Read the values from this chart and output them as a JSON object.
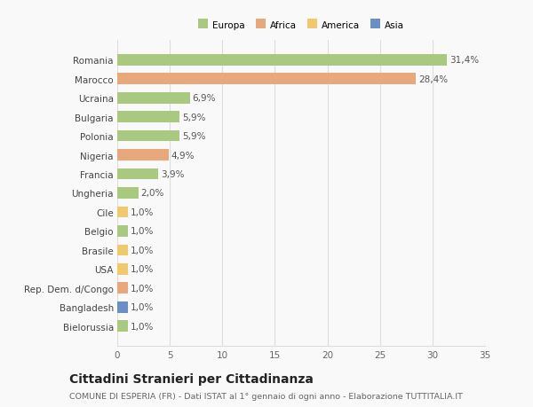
{
  "categories": [
    "Romania",
    "Marocco",
    "Ucraina",
    "Bulgaria",
    "Polonia",
    "Nigeria",
    "Francia",
    "Ungheria",
    "Cile",
    "Belgio",
    "Brasile",
    "USA",
    "Rep. Dem. d/Congo",
    "Bangladesh",
    "Bielorussia"
  ],
  "values": [
    31.4,
    28.4,
    6.9,
    5.9,
    5.9,
    4.9,
    3.9,
    2.0,
    1.0,
    1.0,
    1.0,
    1.0,
    1.0,
    1.0,
    1.0
  ],
  "labels": [
    "31,4%",
    "28,4%",
    "6,9%",
    "5,9%",
    "5,9%",
    "4,9%",
    "3,9%",
    "2,0%",
    "1,0%",
    "1,0%",
    "1,0%",
    "1,0%",
    "1,0%",
    "1,0%",
    "1,0%"
  ],
  "colors": [
    "#a8c97f",
    "#e8a87c",
    "#a8c97f",
    "#a8c97f",
    "#a8c97f",
    "#e8a87c",
    "#a8c97f",
    "#a8c97f",
    "#f0c96e",
    "#a8c97f",
    "#f0c96e",
    "#f0c96e",
    "#e8a87c",
    "#6b8fc2",
    "#a8c97f"
  ],
  "legend_labels": [
    "Europa",
    "Africa",
    "America",
    "Asia"
  ],
  "legend_colors": [
    "#a8c97f",
    "#e8a87c",
    "#f0c96e",
    "#6b8fc2"
  ],
  "title": "Cittadini Stranieri per Cittadinanza",
  "subtitle": "COMUNE DI ESPERIA (FR) - Dati ISTAT al 1° gennaio di ogni anno - Elaborazione TUTTITALIA.IT",
  "xlim": [
    0,
    35
  ],
  "xticks": [
    0,
    5,
    10,
    15,
    20,
    25,
    30,
    35
  ],
  "background_color": "#f9f9f9",
  "grid_color": "#dddddd",
  "label_fontsize": 7.5,
  "tick_fontsize": 7.5,
  "title_fontsize": 10,
  "subtitle_fontsize": 6.8
}
